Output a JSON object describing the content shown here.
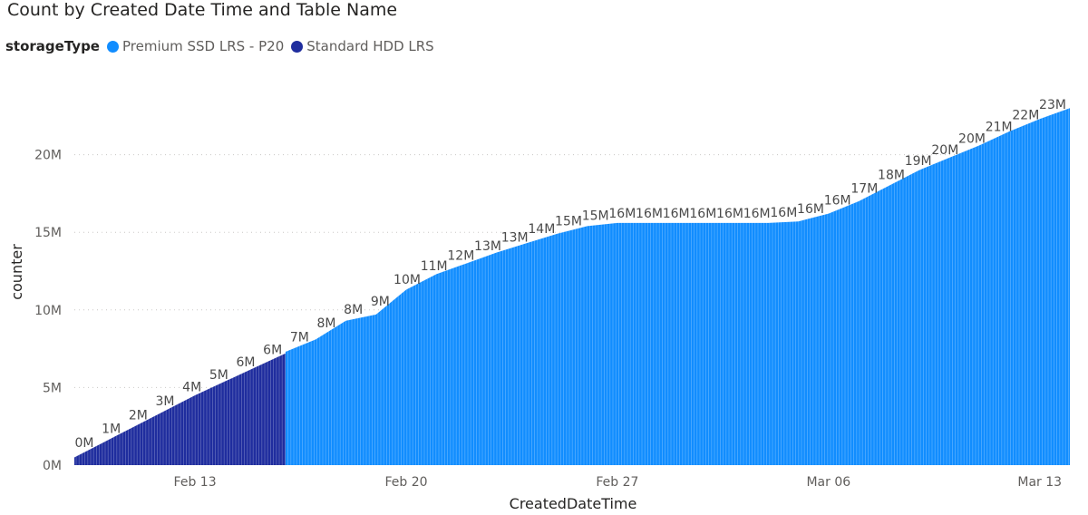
{
  "chart_data": {
    "type": "area",
    "title": "Count by Created Date Time and Table Name",
    "xlabel": "CreatedDateTime",
    "ylabel": "counter",
    "ylim": [
      0,
      25000000
    ],
    "y_ticks": [
      {
        "value": 0,
        "label": "0M"
      },
      {
        "value": 5000000,
        "label": "5M"
      },
      {
        "value": 10000000,
        "label": "10M"
      },
      {
        "value": 15000000,
        "label": "15M"
      },
      {
        "value": 20000000,
        "label": "20M"
      }
    ],
    "x_start": "2022-02-09",
    "x_end": "2022-03-14",
    "x_ticks": [
      {
        "date": "2022-02-13",
        "label": "Feb 13"
      },
      {
        "date": "2022-02-20",
        "label": "Feb 20"
      },
      {
        "date": "2022-02-27",
        "label": "Feb 27"
      },
      {
        "date": "2022-03-06",
        "label": "Mar 06"
      },
      {
        "date": "2022-03-13",
        "label": "Mar 13"
      }
    ],
    "grid": true,
    "legend_title": "storageType",
    "legend_position": "top-left",
    "series": [
      {
        "name": "Standard HDD LRS",
        "color": "#1f2d9e",
        "points": [
          {
            "date": "2022-02-09",
            "value": 500000
          },
          {
            "date": "2022-02-10",
            "value": 1500000
          },
          {
            "date": "2022-02-11",
            "value": 2500000
          },
          {
            "date": "2022-02-12",
            "value": 3500000
          },
          {
            "date": "2022-02-13",
            "value": 4500000
          },
          {
            "date": "2022-02-14",
            "value": 5400000
          },
          {
            "date": "2022-02-15",
            "value": 6300000
          },
          {
            "date": "2022-02-16",
            "value": 7200000
          }
        ]
      },
      {
        "name": "Premium SSD LRS - P20",
        "color": "#118dff",
        "points": [
          {
            "date": "2022-02-16",
            "value": 7300000
          },
          {
            "date": "2022-02-17",
            "value": 8100000
          },
          {
            "date": "2022-02-18",
            "value": 9300000
          },
          {
            "date": "2022-02-19",
            "value": 9700000
          },
          {
            "date": "2022-02-20",
            "value": 11300000
          },
          {
            "date": "2022-02-21",
            "value": 12300000
          },
          {
            "date": "2022-02-22",
            "value": 13000000
          },
          {
            "date": "2022-02-23",
            "value": 13700000
          },
          {
            "date": "2022-02-24",
            "value": 14300000
          },
          {
            "date": "2022-02-25",
            "value": 14900000
          },
          {
            "date": "2022-02-26",
            "value": 15400000
          },
          {
            "date": "2022-02-27",
            "value": 15600000
          },
          {
            "date": "2022-02-28",
            "value": 15600000
          },
          {
            "date": "2022-03-01",
            "value": 15600000
          },
          {
            "date": "2022-03-02",
            "value": 15600000
          },
          {
            "date": "2022-03-03",
            "value": 15600000
          },
          {
            "date": "2022-03-04",
            "value": 15600000
          },
          {
            "date": "2022-03-05",
            "value": 15700000
          },
          {
            "date": "2022-03-06",
            "value": 16200000
          },
          {
            "date": "2022-03-07",
            "value": 17000000
          },
          {
            "date": "2022-03-08",
            "value": 18000000
          },
          {
            "date": "2022-03-09",
            "value": 19000000
          },
          {
            "date": "2022-03-10",
            "value": 19800000
          },
          {
            "date": "2022-03-11",
            "value": 20600000
          },
          {
            "date": "2022-03-12",
            "value": 21500000
          },
          {
            "date": "2022-03-13",
            "value": 22300000
          },
          {
            "date": "2022-03-14",
            "value": 23000000
          }
        ]
      }
    ],
    "data_labels": [
      {
        "date": "2022-02-09",
        "value": 0,
        "label": "0M"
      },
      {
        "date": "2022-02-10",
        "value": 1000000,
        "label": "1M"
      },
      {
        "date": "2022-02-11",
        "value": 2000000,
        "label": "2M"
      },
      {
        "date": "2022-02-12",
        "value": 3000000,
        "label": "3M"
      },
      {
        "date": "2022-02-13",
        "value": 4000000,
        "label": "4M"
      },
      {
        "date": "2022-02-14",
        "value": 5000000,
        "label": "5M"
      },
      {
        "date": "2022-02-15",
        "value": 6000000,
        "label": "6M"
      },
      {
        "date": "2022-02-16",
        "value": 6000000,
        "label": "6M"
      },
      {
        "date": "2022-02-17",
        "value": 7000000,
        "label": "7M"
      },
      {
        "date": "2022-02-18",
        "value": 8000000,
        "label": "8M"
      },
      {
        "date": "2022-02-19",
        "value": 8000000,
        "label": "8M"
      },
      {
        "date": "2022-02-20",
        "value": 9000000,
        "label": "9M"
      },
      {
        "date": "2022-02-21",
        "value": 10000000,
        "label": "10M"
      },
      {
        "date": "2022-02-22",
        "value": 11000000,
        "label": "11M"
      },
      {
        "date": "2022-02-23",
        "value": 12000000,
        "label": "12M"
      },
      {
        "date": "2022-02-24",
        "value": 13000000,
        "label": "13M"
      },
      {
        "date": "2022-02-25",
        "value": 13000000,
        "label": "13M"
      },
      {
        "date": "2022-02-26",
        "value": 14000000,
        "label": "14M"
      },
      {
        "date": "2022-02-27",
        "value": 15000000,
        "label": "15M"
      },
      {
        "date": "2022-02-28",
        "value": 15000000,
        "label": "15M"
      },
      {
        "date": "2022-03-01",
        "value": 16000000,
        "label": "16M"
      },
      {
        "date": "2022-03-02",
        "value": 16000000,
        "label": "16M"
      },
      {
        "date": "2022-03-03",
        "value": 16000000,
        "label": "16M"
      },
      {
        "date": "2022-03-04",
        "value": 16000000,
        "label": "16M"
      },
      {
        "date": "2022-03-05",
        "value": 16000000,
        "label": "16M"
      },
      {
        "date": "2022-03-06",
        "value": 16000000,
        "label": "16M"
      },
      {
        "date": "2022-03-07",
        "value": 16000000,
        "label": "16M"
      },
      {
        "date": "2022-03-08",
        "value": 16000000,
        "label": "16M"
      },
      {
        "date": "2022-03-09",
        "value": 16000000,
        "label": "16M"
      },
      {
        "date": "2022-03-10",
        "value": 17000000,
        "label": "17M"
      },
      {
        "date": "2022-03-11",
        "value": 18000000,
        "label": "18M"
      },
      {
        "date": "2022-03-12",
        "value": 19000000,
        "label": "19M"
      },
      {
        "date": "2022-03-13",
        "value": 20000000,
        "label": "20M"
      },
      {
        "date": "2022-03-13",
        "value": 20000000,
        "label": "20M"
      },
      {
        "date": "2022-03-13",
        "value": 21000000,
        "label": "21M"
      },
      {
        "date": "2022-03-14",
        "value": 22000000,
        "label": "22M"
      },
      {
        "date": "2022-03-14",
        "value": 23000000,
        "label": "23M"
      }
    ]
  }
}
